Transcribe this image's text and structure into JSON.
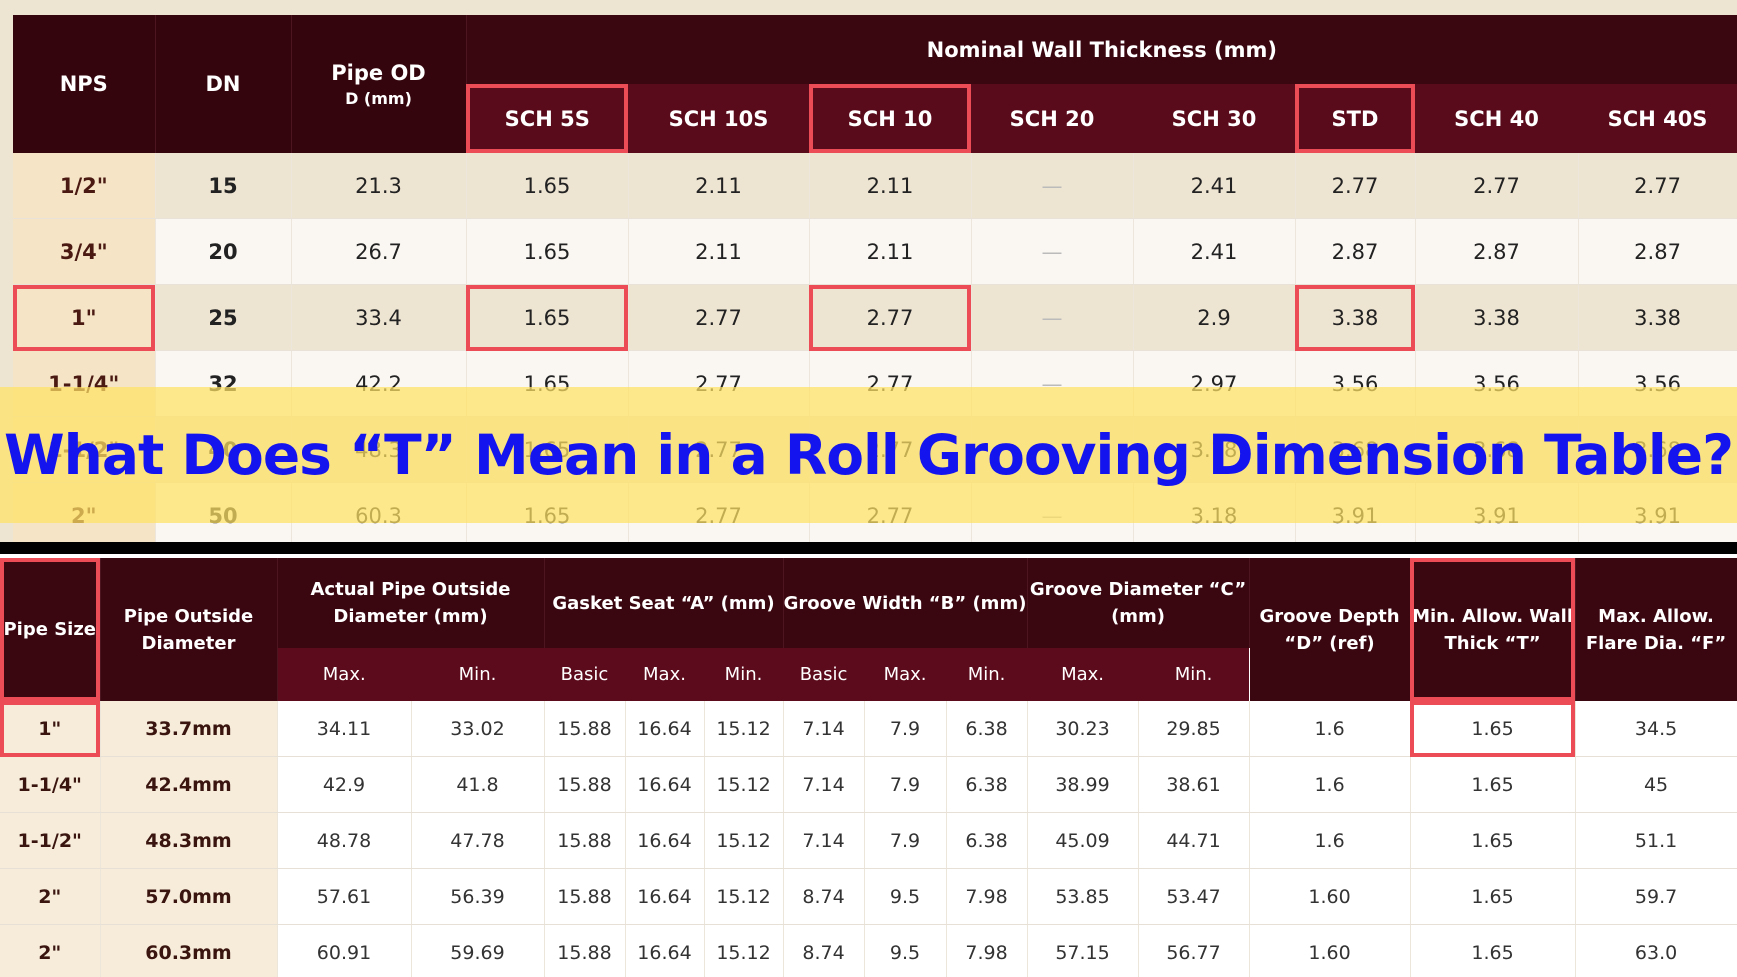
{
  "top_table": {
    "group_header": "Nominal Wall Thickness (mm)",
    "fixed_headers": [
      {
        "label": "NPS"
      },
      {
        "label": "DN"
      },
      {
        "label": "Pipe OD",
        "sub": "D (mm)"
      }
    ],
    "sch_headers": [
      "SCH 5S",
      "SCH 10S",
      "SCH 10",
      "SCH 20",
      "SCH 30",
      "STD",
      "SCH 40",
      "SCH 40S"
    ],
    "rows": [
      [
        "1/2\"",
        "15",
        "21.3",
        "1.65",
        "2.11",
        "2.11",
        "—",
        "2.41",
        "2.77",
        "2.77",
        "2.77"
      ],
      [
        "3/4\"",
        "20",
        "26.7",
        "1.65",
        "2.11",
        "2.11",
        "—",
        "2.41",
        "2.87",
        "2.87",
        "2.87"
      ],
      [
        "1\"",
        "25",
        "33.4",
        "1.65",
        "2.77",
        "2.77",
        "—",
        "2.9",
        "3.38",
        "3.38",
        "3.38"
      ],
      [
        "1-1/4\"",
        "32",
        "42.2",
        "1.65",
        "2.77",
        "2.77",
        "—",
        "2.97",
        "3.56",
        "3.56",
        "3.56"
      ],
      [
        "1-1/2\"",
        "40",
        "48.3",
        "1.65",
        "2.77",
        "2.77",
        "—",
        "3.18",
        "3.68",
        "3.68",
        "3.68"
      ],
      [
        "2\"",
        "50",
        "60.3",
        "1.65",
        "2.77",
        "2.77",
        "—",
        "3.18",
        "3.91",
        "3.91",
        "3.91"
      ]
    ]
  },
  "banner": {
    "title": "What Does “T” Mean in a Roll Grooving Dimension Table?"
  },
  "bottom_table": {
    "headers": [
      {
        "label": "Pipe Size"
      },
      {
        "label": "Pipe Outside Diameter"
      },
      {
        "label": "Actual Pipe Outside Diameter (mm)",
        "sub": [
          "Max.",
          "Min."
        ]
      },
      {
        "label": "Gasket Seat “A” (mm)",
        "sub": [
          "Basic",
          "Max.",
          "Min."
        ]
      },
      {
        "label": "Groove Width “B” (mm)",
        "sub": [
          "Basic",
          "Max.",
          "Min."
        ]
      },
      {
        "label": "Groove Diameter “C” (mm)",
        "sub": [
          "Max.",
          "Min."
        ]
      },
      {
        "label": "Groove Depth “D” (ref)"
      },
      {
        "label": "Min. Allow. Wall Thick “T”"
      },
      {
        "label": "Max. Allow. Flare Dia. “F”"
      }
    ],
    "rows": [
      [
        "1\"",
        "33.7mm",
        "34.11",
        "33.02",
        "15.88",
        "16.64",
        "15.12",
        "7.14",
        "7.9",
        "6.38",
        "30.23",
        "29.85",
        "1.6",
        "1.65",
        "34.5"
      ],
      [
        "1-1/4\"",
        "42.4mm",
        "42.9",
        "41.8",
        "15.88",
        "16.64",
        "15.12",
        "7.14",
        "7.9",
        "6.38",
        "38.99",
        "38.61",
        "1.6",
        "1.65",
        "45"
      ],
      [
        "1-1/2\"",
        "48.3mm",
        "48.78",
        "47.78",
        "15.88",
        "16.64",
        "15.12",
        "7.14",
        "7.9",
        "6.38",
        "45.09",
        "44.71",
        "1.6",
        "1.65",
        "51.1"
      ],
      [
        "2\"",
        "57.0mm",
        "57.61",
        "56.39",
        "15.88",
        "16.64",
        "15.12",
        "8.74",
        "9.5",
        "7.98",
        "53.85",
        "53.47",
        "1.60",
        "1.65",
        "59.7"
      ],
      [
        "2\"",
        "60.3mm",
        "60.91",
        "59.69",
        "15.88",
        "16.64",
        "15.12",
        "8.74",
        "9.5",
        "7.98",
        "57.15",
        "56.77",
        "1.60",
        "1.65",
        "63.0"
      ]
    ]
  }
}
